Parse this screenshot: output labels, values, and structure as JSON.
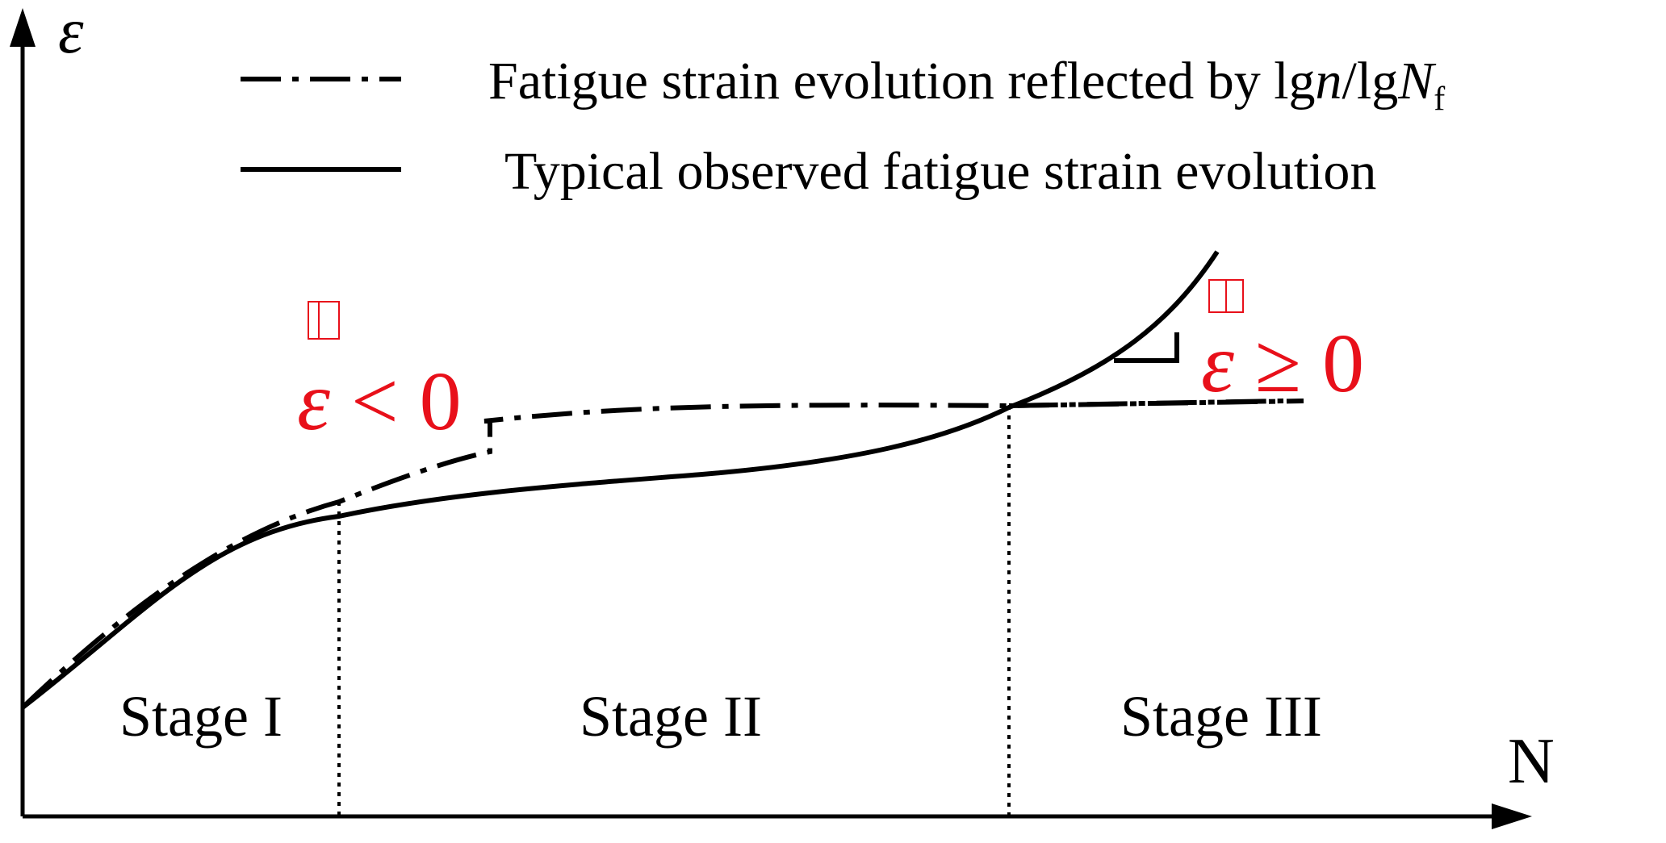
{
  "axes": {
    "y_symbol": "ε",
    "x_symbol": "N"
  },
  "legend": {
    "dashdot_label": "Fatigue strain evolution reflected by lg",
    "dashdot_n": "n",
    "dashdot_slash": "/lg",
    "dashdot_N": "N",
    "dashdot_sub": "f",
    "solid_label": "Typical observed fatigue strain evolution"
  },
  "stages": {
    "stage1": "Stage I",
    "stage2": "Stage II",
    "stage3": "Stage III"
  },
  "annotations": {
    "left_symbol": "ε",
    "left_relation": " < 0",
    "right_symbol": "ε",
    "right_relation": " ≥ 0"
  },
  "colors": {
    "ink": "#000000",
    "annotation": "#e8101a"
  }
}
